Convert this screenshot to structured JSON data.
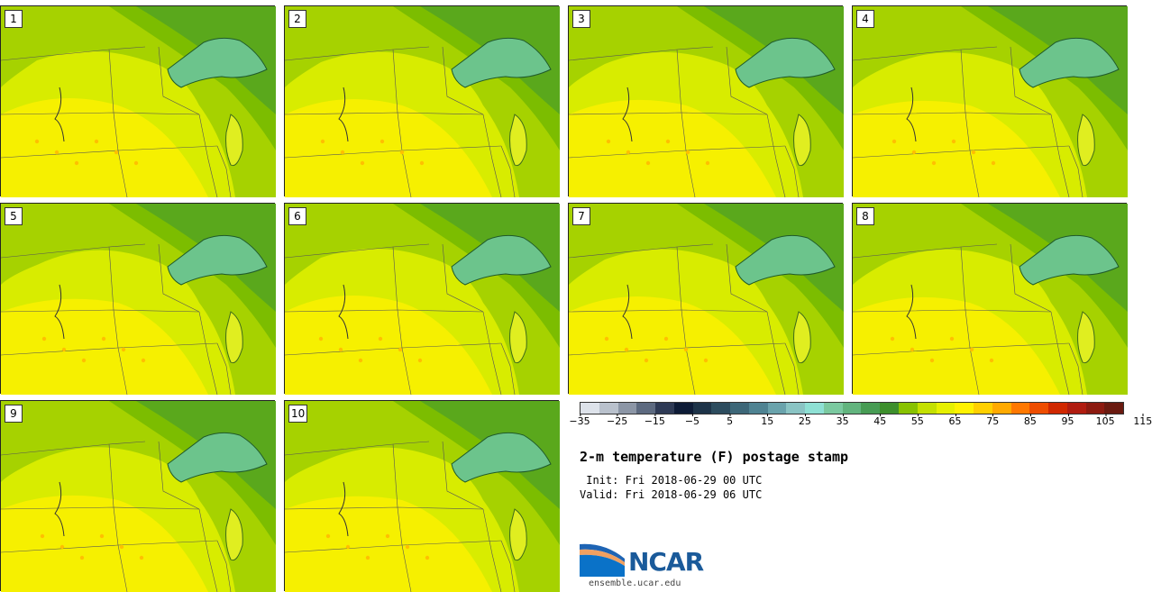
{
  "members": [
    "1",
    "2",
    "3",
    "4",
    "5",
    "6",
    "7",
    "8",
    "9",
    "10"
  ],
  "colorbar": {
    "colors": [
      "#dde2ea",
      "#b9c1cc",
      "#8c96a6",
      "#5d6a80",
      "#2e3a55",
      "#0d1b36",
      "#1d3348",
      "#2c4c5e",
      "#3d6778",
      "#4f8392",
      "#6aa3ac",
      "#8ac4c4",
      "#8ee0d4",
      "#7bc9a0",
      "#62b47e",
      "#479c54",
      "#3d8f2c",
      "#88c200",
      "#c4e000",
      "#e6f000",
      "#fff200",
      "#ffd000",
      "#ffaa00",
      "#ff7800",
      "#ee4d00",
      "#d02800",
      "#b01c10",
      "#8c1a10",
      "#6a1a10"
    ],
    "ticks": [
      "−35",
      "−25",
      "−15",
      "−5",
      "5",
      "15",
      "25",
      "35",
      "45",
      "55",
      "65",
      "75",
      "85",
      "95",
      "105",
      "115"
    ]
  },
  "title": "2-m temperature (F) postage stamp",
  "init": " Init: Fri 2018-06-29 00 UTC",
  "valid": "Valid: Fri 2018-06-29 06 UTC",
  "logo_text": "NCAR",
  "url": "ensemble.ucar.edu"
}
